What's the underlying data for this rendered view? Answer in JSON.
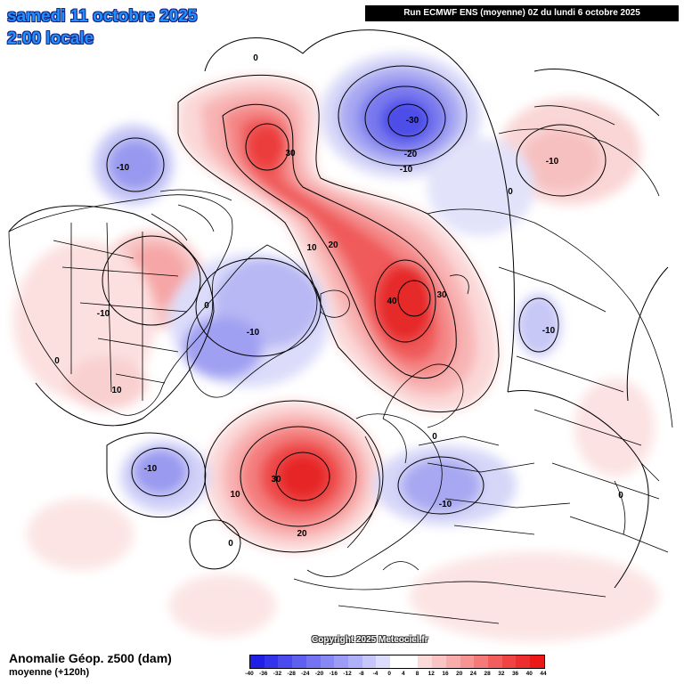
{
  "header": {
    "date": "samedi 11 octobre 2025",
    "time": "2:00 locale",
    "run": "Run ECMWF ENS (moyenne) 0Z du lundi 6 octobre 2025"
  },
  "footer": {
    "variable": "Anomalie Géop. z500 (dam)",
    "subtitle": "moyenne  (+120h)",
    "copyright": "Copyright 2025 Meteociel.fr"
  },
  "scale": {
    "unit": "dam",
    "ticks": [
      "-40",
      "-36",
      "-32",
      "-28",
      "-24",
      "-20",
      "-16",
      "-12",
      "-8",
      "-4",
      "0",
      "4",
      "8",
      "12",
      "16",
      "20",
      "24",
      "28",
      "32",
      "36",
      "40",
      "44"
    ],
    "colors": [
      "#1f1fe6",
      "#3333ec",
      "#4a4aee",
      "#5f5ff0",
      "#7474f2",
      "#8888f4",
      "#9c9cf6",
      "#b0b0f8",
      "#c6c6fa",
      "#dcdcfc",
      "#ffffff",
      "#ffffff",
      "#fcdada",
      "#fac4c4",
      "#f8acac",
      "#f69494",
      "#f47a7a",
      "#f25e5e",
      "#f04444",
      "#ee2e2e",
      "#ec1818"
    ]
  },
  "map": {
    "labels": [
      "-10",
      "30",
      "-30",
      "-20",
      "-10",
      "0",
      "-10",
      "10",
      "20",
      "40",
      "30",
      "-10",
      "0",
      "-10",
      "-10",
      "10",
      "0",
      "-10",
      "30",
      "10",
      "20",
      "0",
      "0",
      "-10",
      "0",
      "0",
      "10"
    ],
    "colors": {
      "land": "#000000",
      "positive": "#e50000",
      "negative": "#2222cc"
    }
  }
}
